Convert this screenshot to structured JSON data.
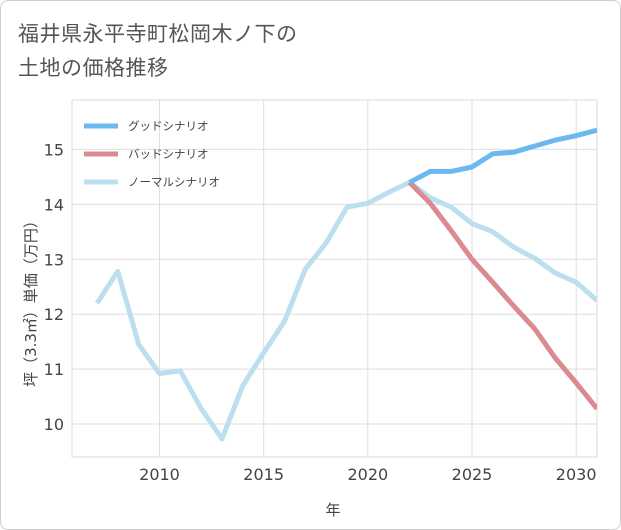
{
  "title_lines": [
    "福井県永平寺町松岡木ノ下の",
    "土地の価格推移"
  ],
  "chart_data": {
    "type": "line",
    "title": "福井県永平寺町松岡木ノ下の土地の価格推移",
    "xlabel": "年",
    "ylabel": "坪（3.3㎡）単価（万円）",
    "xlim": [
      2005.8,
      2031
    ],
    "ylim": [
      9.4,
      15.9
    ],
    "xticks": [
      2010,
      2015,
      2020,
      2025,
      2030
    ],
    "yticks": [
      10,
      11,
      12,
      13,
      14,
      15
    ],
    "grid": true,
    "legend_position": "top-left",
    "series": [
      {
        "name": "グッドシナリオ",
        "color": "#6cb8f0",
        "x": [
          2022,
          2023,
          2024,
          2025,
          2026,
          2027,
          2028,
          2029,
          2030,
          2031
        ],
        "values": [
          14.4,
          14.6,
          14.6,
          14.68,
          14.92,
          14.95,
          15.06,
          15.17,
          15.25,
          15.35
        ]
      },
      {
        "name": "バッドシナリオ",
        "color": "#dc8a92",
        "x": [
          2022,
          2023,
          2024,
          2025,
          2026,
          2027,
          2028,
          2029,
          2030,
          2031
        ],
        "values": [
          14.4,
          14.02,
          13.52,
          13.0,
          12.58,
          12.15,
          11.74,
          11.2,
          10.75,
          10.28
        ]
      },
      {
        "name": "ノーマルシナリオ",
        "color": "#bcdff0",
        "x": [
          2007,
          2008,
          2009,
          2010,
          2011,
          2012,
          2013,
          2014,
          2015,
          2016,
          2017,
          2018,
          2019,
          2020,
          2021,
          2022,
          2023,
          2024,
          2025,
          2026,
          2027,
          2028,
          2029,
          2030,
          2031
        ],
        "values": [
          12.2,
          12.78,
          11.45,
          10.92,
          10.97,
          10.28,
          9.73,
          10.7,
          11.3,
          11.87,
          12.82,
          13.3,
          13.95,
          14.02,
          14.22,
          14.4,
          14.12,
          13.95,
          13.65,
          13.5,
          13.22,
          13.02,
          12.75,
          12.58,
          12.25
        ]
      }
    ]
  }
}
